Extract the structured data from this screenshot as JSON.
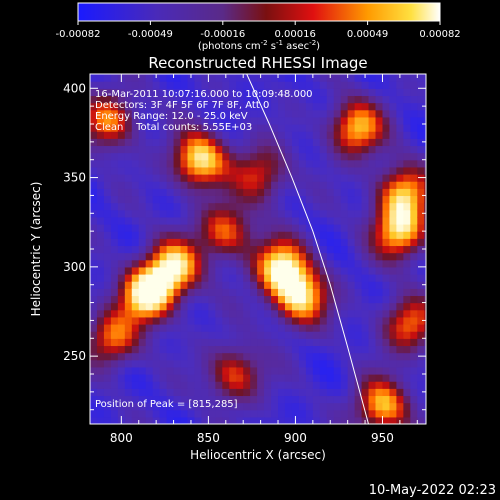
{
  "colorbar": {
    "ticks": [
      "-0.00082",
      "-0.00049",
      "-0.00016",
      "0.00016",
      "0.00049",
      "0.00082"
    ],
    "units_html": "(photons cm<tspan dy='-4' font-size='7'>-2</tspan><tspan dy='4'> s</tspan><tspan dy='-4' font-size='7'>-1</tspan><tspan dy='4'> asec</tspan><tspan dy='-4' font-size='7'>-2</tspan><tspan dy='4'>)</tspan>",
    "units": "(photons cm-2 s-1 asec-2)"
  },
  "chart_data": {
    "type": "heatmap",
    "title": "Reconstructed RHESSI Image",
    "xlabel": "Heliocentric X (arcsec)",
    "ylabel": "Heliocentric Y (arcsec)",
    "xlim": [
      782,
      975
    ],
    "ylim": [
      212,
      408
    ],
    "xticks": [
      800,
      850,
      900,
      950
    ],
    "yticks": [
      250,
      300,
      350,
      400
    ],
    "value_range": [
      -0.00082,
      0.00082
    ],
    "colormap": "blue-purple-red-orange-yellow-white",
    "sources": [
      {
        "x": 815,
        "y": 285,
        "value": 0.00082
      },
      {
        "x": 830,
        "y": 300,
        "value": 0.00062
      },
      {
        "x": 845,
        "y": 360,
        "value": 0.0007
      },
      {
        "x": 892,
        "y": 300,
        "value": 0.00068
      },
      {
        "x": 903,
        "y": 283,
        "value": 0.0006
      },
      {
        "x": 860,
        "y": 320,
        "value": 0.0003
      },
      {
        "x": 935,
        "y": 378,
        "value": 0.00052
      },
      {
        "x": 960,
        "y": 320,
        "value": 0.00055
      },
      {
        "x": 962,
        "y": 342,
        "value": 0.00045
      },
      {
        "x": 950,
        "y": 222,
        "value": 0.0005
      },
      {
        "x": 965,
        "y": 268,
        "value": 0.0003
      },
      {
        "x": 793,
        "y": 382,
        "value": 0.00035
      },
      {
        "x": 795,
        "y": 260,
        "value": 0.0003
      },
      {
        "x": 880,
        "y": 352,
        "value": 0.0002
      },
      {
        "x": 865,
        "y": 240,
        "value": 0.00025
      }
    ],
    "limb_curve": [
      [
        872,
        408
      ],
      [
        885,
        380
      ],
      [
        898,
        350
      ],
      [
        910,
        320
      ],
      [
        920,
        290
      ],
      [
        930,
        255
      ],
      [
        942,
        212
      ]
    ],
    "annotations": {
      "time": "16-Mar-2011 10:07:16.000 to 10:09:48.000",
      "detectors": "Detectors: 3F 4F 5F 6F 7F 8F, Att 0",
      "energy": "Energy Range: 12.0 - 25.0 keV",
      "clean": "Clean    Total counts: 5.55E+03",
      "peak": "Position of Peak = [815,285]"
    }
  },
  "footer": {
    "date": "10-May-2022 02:23"
  },
  "colors": {
    "background": "#000000",
    "axes": "#ffffff",
    "limb": "#ffffff"
  }
}
